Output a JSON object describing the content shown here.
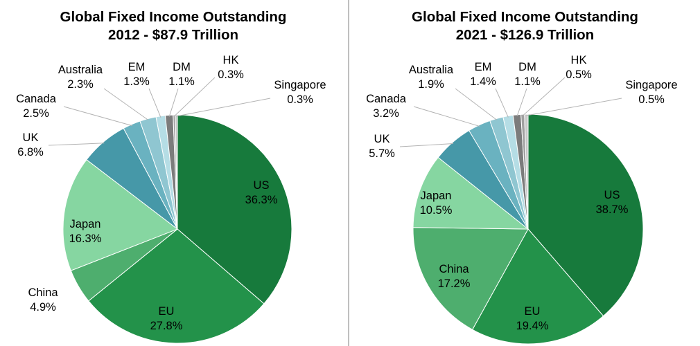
{
  "chart_data": [
    {
      "type": "pie",
      "title": "Global Fixed Income Outstanding",
      "subtitle": "2012 - $87.9 Trillion",
      "slices": [
        {
          "label": "US",
          "value": 36.3,
          "text": "36.3%",
          "color": "#177a3c"
        },
        {
          "label": "EU",
          "value": 27.8,
          "text": "27.8%",
          "color": "#23924a"
        },
        {
          "label": "China",
          "value": 4.9,
          "text": "4.9%",
          "color": "#4eae6e"
        },
        {
          "label": "Japan",
          "value": 16.3,
          "text": "16.3%",
          "color": "#86d6a1"
        },
        {
          "label": "UK",
          "value": 6.8,
          "text": "6.8%",
          "color": "#4698a8"
        },
        {
          "label": "Canada",
          "value": 2.5,
          "text": "2.5%",
          "color": "#6ab2c0"
        },
        {
          "label": "Australia",
          "value": 2.3,
          "text": "2.3%",
          "color": "#8fc6d1"
        },
        {
          "label": "EM",
          "value": 1.3,
          "text": "1.3%",
          "color": "#b5dde5"
        },
        {
          "label": "DM",
          "value": 1.1,
          "text": "1.1%",
          "color": "#7c7c7c"
        },
        {
          "label": "HK",
          "value": 0.3,
          "text": "0.3%",
          "color": "#a0a0a0"
        },
        {
          "label": "Singapore",
          "value": 0.3,
          "text": "0.3%",
          "color": "#c8c8c8"
        }
      ]
    },
    {
      "type": "pie",
      "title": "Global Fixed Income Outstanding",
      "subtitle": "2021 - $126.9 Trillion",
      "slices": [
        {
          "label": "US",
          "value": 38.7,
          "text": "38.7%",
          "color": "#177a3c"
        },
        {
          "label": "EU",
          "value": 19.4,
          "text": "19.4%",
          "color": "#23924a"
        },
        {
          "label": "China",
          "value": 17.2,
          "text": "17.2%",
          "color": "#4eae6e"
        },
        {
          "label": "Japan",
          "value": 10.5,
          "text": "10.5%",
          "color": "#86d6a1"
        },
        {
          "label": "UK",
          "value": 5.7,
          "text": "5.7%",
          "color": "#4698a8"
        },
        {
          "label": "Canada",
          "value": 3.2,
          "text": "3.2%",
          "color": "#6ab2c0"
        },
        {
          "label": "Australia",
          "value": 1.9,
          "text": "1.9%",
          "color": "#8fc6d1"
        },
        {
          "label": "EM",
          "value": 1.4,
          "text": "1.4%",
          "color": "#b5dde5"
        },
        {
          "label": "DM",
          "value": 1.1,
          "text": "1.1%",
          "color": "#7c7c7c"
        },
        {
          "label": "HK",
          "value": 0.5,
          "text": "0.5%",
          "color": "#a0a0a0"
        },
        {
          "label": "Singapore",
          "value": 0.5,
          "text": "0.5%",
          "color": "#c8c8c8"
        }
      ]
    }
  ]
}
